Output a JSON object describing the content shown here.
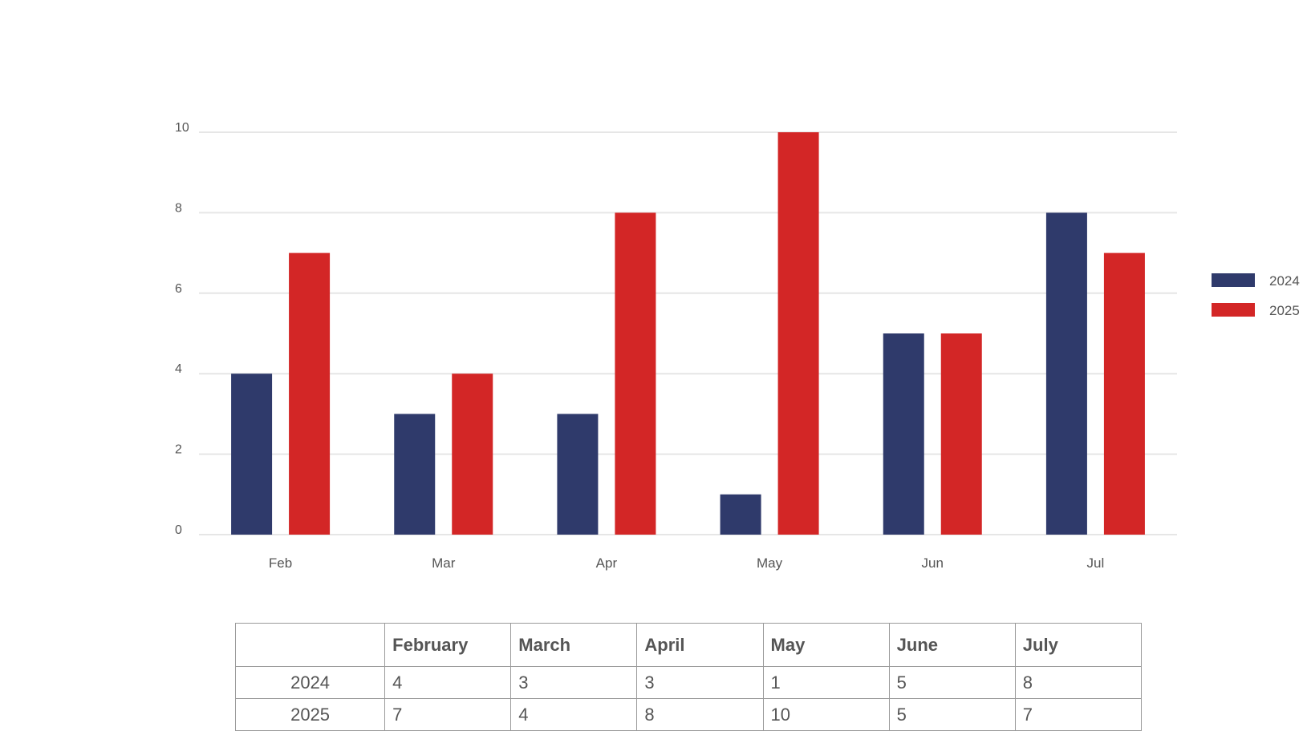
{
  "chart_data": {
    "type": "bar",
    "categories": [
      "Feb",
      "Mar",
      "Apr",
      "May",
      "Jun",
      "Jul"
    ],
    "series": [
      {
        "name": "2024",
        "color": "#2f3a6b",
        "values": [
          4,
          3,
          3,
          1,
          5,
          8
        ]
      },
      {
        "name": "2025",
        "color": "#d32626",
        "values": [
          7,
          4,
          8,
          10,
          5,
          7
        ]
      }
    ],
    "ylim": [
      0,
      10
    ],
    "yticks": [
      0,
      2,
      4,
      6,
      8,
      10
    ],
    "title": "",
    "xlabel": "",
    "ylabel": "",
    "grid": true,
    "legend": "right"
  },
  "table": {
    "header": [
      "",
      "February",
      "March",
      "April",
      "May",
      "June",
      "July"
    ],
    "rows": [
      {
        "label": "2024",
        "values": [
          "4",
          "3",
          "3",
          "1",
          "5",
          "8"
        ]
      },
      {
        "label": "2025",
        "values": [
          "7",
          "4",
          "8",
          "10",
          "5",
          "7"
        ]
      }
    ]
  }
}
